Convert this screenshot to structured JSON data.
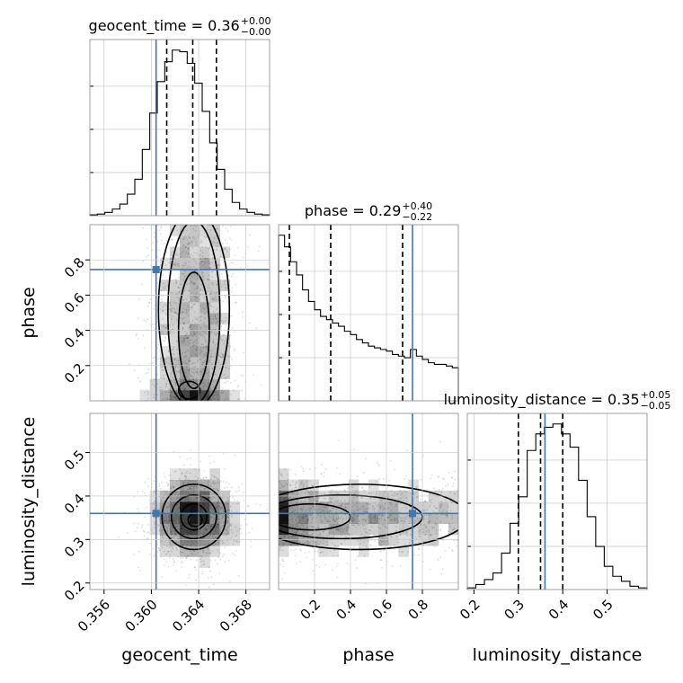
{
  "chart_data": {
    "type": "corner",
    "parameters": [
      "geocent_time",
      "phase",
      "luminosity_distance"
    ],
    "titles": [
      {
        "param": "geocent_time",
        "text": "geocent_time = 0.36",
        "sup": "+0.00",
        "sub": "−0.00"
      },
      {
        "param": "phase",
        "text": "phase = 0.29",
        "sup": "+0.40",
        "sub": "−0.22"
      },
      {
        "param": "luminosity_distance",
        "text": "luminosity_distance = 0.35",
        "sup": "+0.05",
        "sub": "−0.05"
      }
    ],
    "axes": {
      "geocent_time": {
        "range": [
          0.3548,
          0.37
        ],
        "ticks": [
          0.356,
          0.36,
          0.364,
          0.368
        ],
        "tick_labels": [
          "0.356",
          "0.360",
          "0.364",
          "0.368"
        ],
        "label": "geocent_time"
      },
      "phase": {
        "range": [
          0.0,
          1.0
        ],
        "ticks": [
          0.2,
          0.4,
          0.6,
          0.8
        ],
        "tick_labels": [
          "0.2",
          "0.4",
          "0.6",
          "0.8"
        ],
        "label": "phase"
      },
      "luminosity_distance": {
        "range": [
          0.185,
          0.59
        ],
        "ticks": [
          0.2,
          0.3,
          0.4,
          0.5
        ],
        "tick_labels": [
          "0.2",
          "0.3",
          "0.4",
          "0.5"
        ],
        "label": "luminosity_distance"
      }
    },
    "truths": {
      "geocent_time": 0.3604,
      "phase": 0.745,
      "luminosity_distance": 0.36
    },
    "quantiles": {
      "geocent_time": [
        0.3613,
        0.3635,
        0.3655
      ],
      "phase": [
        0.06,
        0.29,
        0.69
      ],
      "luminosity_distance": [
        0.3,
        0.35,
        0.4
      ]
    },
    "histograms": {
      "geocent_time": {
        "edges_range": [
          0.3548,
          0.37
        ],
        "counts": [
          0.005,
          0.01,
          0.02,
          0.04,
          0.07,
          0.13,
          0.22,
          0.4,
          0.62,
          0.81,
          0.93,
          1.0,
          0.99,
          0.92,
          0.8,
          0.63,
          0.44,
          0.28,
          0.16,
          0.08,
          0.04,
          0.02,
          0.01,
          0.005
        ]
      },
      "phase": {
        "edges_range": [
          0.0,
          1.0
        ],
        "counts": [
          1.0,
          0.93,
          0.84,
          0.76,
          0.67,
          0.6,
          0.55,
          0.51,
          0.49,
          0.47,
          0.45,
          0.42,
          0.4,
          0.37,
          0.35,
          0.33,
          0.32,
          0.31,
          0.3,
          0.28,
          0.27,
          0.26,
          0.31,
          0.27,
          0.25,
          0.23,
          0.22,
          0.22,
          0.21,
          0.2
        ]
      },
      "luminosity_distance": {
        "edges_range": [
          0.185,
          0.59
        ],
        "counts": [
          0.01,
          0.03,
          0.06,
          0.1,
          0.22,
          0.4,
          0.56,
          0.84,
          0.94,
          0.98,
          1.0,
          0.94,
          0.86,
          0.66,
          0.44,
          0.26,
          0.14,
          0.08,
          0.05,
          0.02,
          0.01
        ]
      }
    },
    "grid": true
  }
}
